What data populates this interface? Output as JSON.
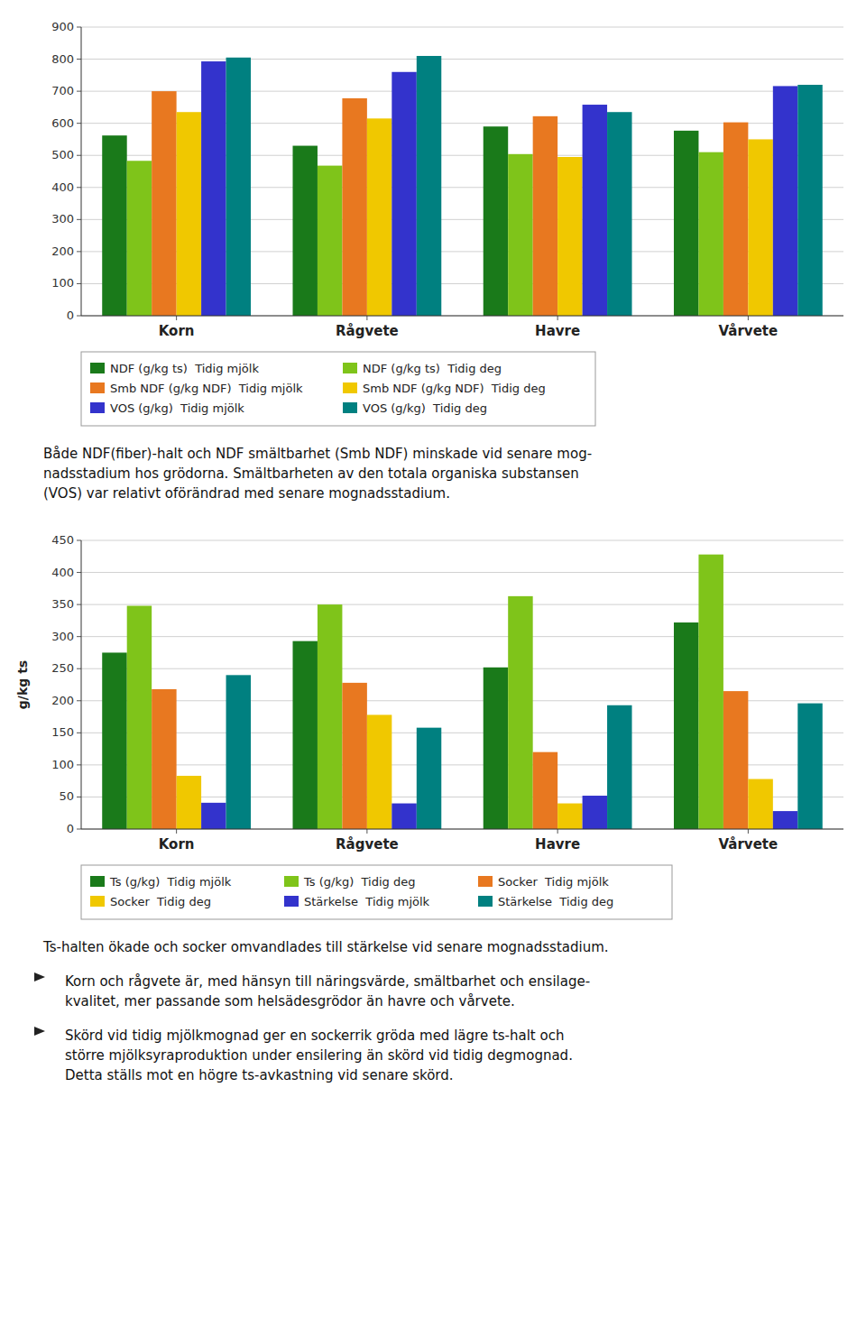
{
  "chart_data": [
    {
      "type": "bar",
      "categories": [
        "Korn",
        "Rågvete",
        "Havre",
        "Vårvete"
      ],
      "series": [
        {
          "name": "NDF (g/kg ts)  Tidig mjölk",
          "color": "#1a7a1a",
          "values": [
            562,
            530,
            590,
            577
          ]
        },
        {
          "name": "NDF (g/kg ts)  Tidig deg",
          "color": "#7fc41a",
          "values": [
            483,
            468,
            504,
            510
          ]
        },
        {
          "name": "Smb NDF (g/kg NDF)  Tidig mjölk",
          "color": "#e87820",
          "values": [
            700,
            678,
            622,
            603
          ]
        },
        {
          "name": "Smb NDF (g/kg NDF)  Tidig deg",
          "color": "#f0c800",
          "values": [
            635,
            615,
            495,
            550
          ]
        },
        {
          "name": "VOS (g/kg)  Tidig mjölk",
          "color": "#3333cc",
          "values": [
            793,
            760,
            658,
            716
          ]
        },
        {
          "name": "VOS (g/kg)  Tidig deg",
          "color": "#008080",
          "values": [
            805,
            810,
            635,
            720
          ]
        }
      ],
      "ylim": [
        0,
        900
      ],
      "yticks": [
        0,
        100,
        200,
        300,
        400,
        500,
        600,
        700,
        800,
        900
      ],
      "grid": true,
      "legend": "bottom",
      "annotations": [
        [
          "Både NDF(fiber)-halt och NDF smältbarhet (Smb NDF) minskade vid senare mog-",
          "nadsstadium hos grödorna. Smältbarheten av den totala organiska substansen",
          "(VOS) var relativt oförändrad med senare mognadsstadium."
        ]
      ]
    },
    {
      "type": "bar",
      "categories": [
        "Korn",
        "Rågvete",
        "Havre",
        "Vårvete"
      ],
      "series": [
        {
          "name": "Ts (g/kg)  Tidig mjölk",
          "color": "#1a7a1a",
          "values": [
            275,
            293,
            252,
            322
          ]
        },
        {
          "name": "Ts (g/kg)  Tidig deg",
          "color": "#7fc41a",
          "values": [
            348,
            350,
            363,
            428
          ]
        },
        {
          "name": "Socker  Tidig mjölk",
          "color": "#e87820",
          "values": [
            218,
            228,
            120,
            215
          ]
        },
        {
          "name": "Socker  Tidig deg",
          "color": "#f0c800",
          "values": [
            83,
            178,
            40,
            78
          ]
        },
        {
          "name": "Stärkelse  Tidig mjölk",
          "color": "#3333cc",
          "values": [
            41,
            40,
            52,
            28
          ]
        },
        {
          "name": "Stärkelse  Tidig deg",
          "color": "#008080",
          "values": [
            240,
            158,
            193,
            196
          ]
        }
      ],
      "ylim": [
        0,
        450
      ],
      "yticks": [
        0,
        50,
        100,
        150,
        200,
        250,
        300,
        350,
        400,
        450
      ],
      "ylabel": "g/kg ts",
      "grid": true,
      "legend": "bottom",
      "annotations": [
        [
          "Ts-halten ökade och socker omvandlades till stärkelse vid senare mognadsstadium."
        ],
        [
          "Korn och rågvete är, med hänsyn till näringsvärde, smältbarhet och ensilage-",
          "kvalitet, mer passande som helsädesgrödor än havre och vårvete."
        ],
        [
          "Skörd vid tidig mjölkmognad ger en sockerrik gröda med lägre ts-halt och",
          "större mjölksyraproduktion under ensilering än skörd vid tidig degmognad.",
          "Detta ställs mot en högre ts-avkastning vid senare skörd."
        ]
      ]
    }
  ]
}
